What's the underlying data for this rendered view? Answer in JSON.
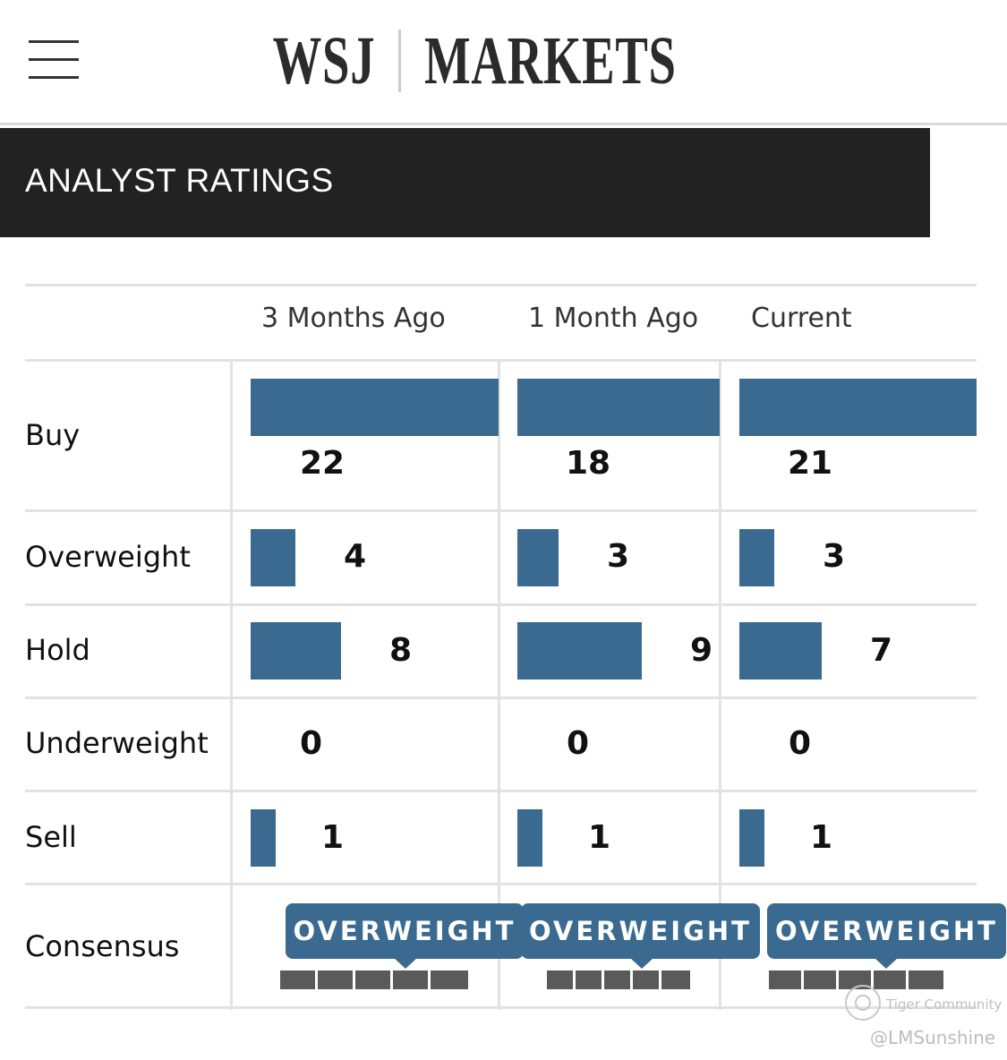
{
  "header": {
    "brand": "WSJ",
    "section": "MARKETS"
  },
  "banner": {
    "title": "ANALYST RATINGS"
  },
  "columns": [
    "3 Months Ago",
    "1 Month Ago",
    "Current"
  ],
  "rows": [
    {
      "label": "Buy",
      "values": [
        "22",
        "18",
        "21"
      ]
    },
    {
      "label": "Overweight",
      "values": [
        "4",
        "3",
        "3"
      ]
    },
    {
      "label": "Hold",
      "values": [
        "8",
        "9",
        "7"
      ]
    },
    {
      "label": "Underweight",
      "values": [
        "0",
        "0",
        "0"
      ]
    },
    {
      "label": "Sell",
      "values": [
        "1",
        "1",
        "1"
      ]
    }
  ],
  "consensus": {
    "label": "Consensus",
    "values": [
      "OVERWEIGHT",
      "OVERWEIGHT",
      "OVERWEIGHT"
    ],
    "scale_position": 4,
    "scale_steps": 5
  },
  "watermark": {
    "community": "Tiger Community",
    "user": "@LMSunshine"
  },
  "colors": {
    "bar": "#3a6a8f",
    "banner": "#222222",
    "scale": "#5a5a5a"
  },
  "icons": [
    "menu-icon",
    "tiger-community-logo-icon"
  ]
}
